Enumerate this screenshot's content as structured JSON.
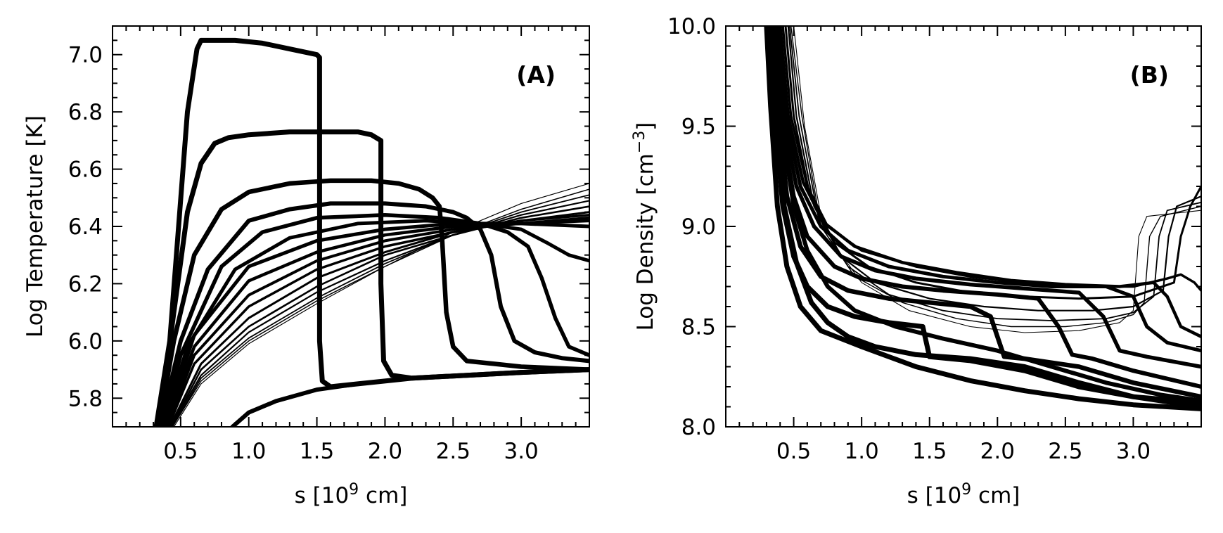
{
  "chart_data": [
    {
      "type": "line",
      "panel_label": "(A)",
      "xlabel_main": "s [10",
      "xlabel_sup": "9",
      "xlabel_tail": " cm]",
      "ylabel": "Log Temperature [K]",
      "xlim": [
        0.0,
        3.5
      ],
      "ylim": [
        5.7,
        7.1
      ],
      "xticks": [
        "0.5",
        "1.0",
        "1.5",
        "2.0",
        "2.5",
        "3.0"
      ],
      "xtick_values": [
        0.5,
        1.0,
        1.5,
        2.0,
        2.5,
        3.0
      ],
      "yticks": [
        "5.8",
        "6.0",
        "6.2",
        "6.4",
        "6.6",
        "6.8",
        "7.0"
      ],
      "ytick_values": [
        5.8,
        6.0,
        6.2,
        6.4,
        6.6,
        6.8,
        7.0
      ],
      "series": [
        {
          "width": 7,
          "x": [
            0.32,
            0.42,
            0.55,
            0.62,
            0.65,
            0.7,
            0.9,
            1.1,
            1.3,
            1.5,
            1.52,
            1.52,
            1.54,
            1.6,
            1.8,
            2.2,
            2.6,
            3.0,
            3.5
          ],
          "y": [
            5.7,
            6.0,
            6.8,
            7.02,
            7.05,
            7.05,
            7.05,
            7.04,
            7.02,
            7.0,
            6.99,
            6.0,
            5.86,
            5.84,
            5.85,
            5.87,
            5.88,
            5.89,
            5.9
          ]
        },
        {
          "width": 7,
          "x": [
            0.34,
            0.45,
            0.55,
            0.65,
            0.75,
            0.85,
            1.0,
            1.3,
            1.6,
            1.8,
            1.9,
            1.97,
            1.97,
            1.99,
            2.05,
            2.2,
            2.6,
            3.0,
            3.5
          ],
          "y": [
            5.7,
            6.1,
            6.45,
            6.62,
            6.69,
            6.71,
            6.72,
            6.73,
            6.73,
            6.73,
            6.72,
            6.7,
            6.2,
            5.93,
            5.88,
            5.87,
            5.88,
            5.89,
            5.9
          ]
        },
        {
          "width": 6.5,
          "x": [
            0.34,
            0.45,
            0.6,
            0.8,
            1.0,
            1.3,
            1.6,
            1.9,
            2.1,
            2.25,
            2.35,
            2.4,
            2.42,
            2.45,
            2.5,
            2.6,
            2.8,
            3.0,
            3.5
          ],
          "y": [
            5.7,
            6.0,
            6.3,
            6.46,
            6.52,
            6.55,
            6.56,
            6.56,
            6.55,
            6.53,
            6.5,
            6.47,
            6.35,
            6.1,
            5.98,
            5.93,
            5.92,
            5.91,
            5.9
          ]
        },
        {
          "width": 6,
          "x": [
            0.35,
            0.5,
            0.7,
            1.0,
            1.3,
            1.6,
            2.0,
            2.3,
            2.5,
            2.6,
            2.7,
            2.78,
            2.85,
            2.95,
            3.1,
            3.3,
            3.5
          ],
          "y": [
            5.7,
            6.0,
            6.25,
            6.42,
            6.46,
            6.48,
            6.48,
            6.47,
            6.45,
            6.43,
            6.39,
            6.3,
            6.12,
            6.0,
            5.96,
            5.94,
            5.93
          ]
        },
        {
          "width": 5.5,
          "x": [
            0.36,
            0.5,
            0.8,
            1.1,
            1.5,
            2.0,
            2.4,
            2.7,
            2.9,
            3.05,
            3.15,
            3.25,
            3.35,
            3.5
          ],
          "y": [
            5.7,
            5.95,
            6.26,
            6.38,
            6.43,
            6.44,
            6.43,
            6.41,
            6.38,
            6.33,
            6.22,
            6.08,
            5.98,
            5.95
          ]
        },
        {
          "width": 5,
          "x": [
            0.37,
            0.55,
            0.9,
            1.3,
            1.8,
            2.3,
            2.7,
            3.0,
            3.2,
            3.35,
            3.5
          ],
          "y": [
            5.7,
            5.98,
            6.25,
            6.36,
            6.41,
            6.42,
            6.41,
            6.39,
            6.34,
            6.3,
            6.28
          ]
        },
        {
          "width": 5,
          "x": [
            0.38,
            0.6,
            1.0,
            1.5,
            2.0,
            2.5,
            3.0,
            3.5
          ],
          "y": [
            5.7,
            6.02,
            6.26,
            6.35,
            6.39,
            6.41,
            6.41,
            6.4
          ]
        },
        {
          "width": 4.5,
          "x": [
            0.39,
            0.6,
            1.0,
            1.5,
            2.0,
            2.5,
            3.0,
            3.5
          ],
          "y": [
            5.7,
            5.98,
            6.21,
            6.31,
            6.37,
            6.4,
            6.41,
            6.42
          ]
        },
        {
          "width": 4,
          "x": [
            0.4,
            0.6,
            1.0,
            1.5,
            2.0,
            2.5,
            3.0,
            3.5
          ],
          "y": [
            5.7,
            5.95,
            6.16,
            6.28,
            6.35,
            6.39,
            6.41,
            6.43
          ]
        },
        {
          "width": 3.5,
          "x": [
            0.41,
            0.6,
            1.0,
            1.5,
            2.0,
            2.5,
            3.0,
            3.5
          ],
          "y": [
            5.7,
            5.92,
            6.12,
            6.25,
            6.33,
            6.38,
            6.42,
            6.44
          ]
        },
        {
          "width": 3,
          "x": [
            0.42,
            0.65,
            1.0,
            1.5,
            2.0,
            2.5,
            3.0,
            3.5
          ],
          "y": [
            5.7,
            5.92,
            6.08,
            6.22,
            6.31,
            6.38,
            6.42,
            6.45
          ]
        },
        {
          "width": 2.6,
          "x": [
            0.43,
            0.65,
            1.0,
            1.5,
            2.0,
            2.5,
            3.0,
            3.5
          ],
          "y": [
            5.7,
            5.9,
            6.05,
            6.19,
            6.3,
            6.37,
            6.43,
            6.47
          ]
        },
        {
          "width": 2.2,
          "x": [
            0.43,
            0.65,
            1.0,
            1.5,
            2.0,
            2.5,
            3.0,
            3.5
          ],
          "y": [
            5.7,
            5.88,
            6.03,
            6.17,
            6.28,
            6.37,
            6.44,
            6.49
          ]
        },
        {
          "width": 1.8,
          "x": [
            0.44,
            0.65,
            1.0,
            1.5,
            2.0,
            2.5,
            3.0,
            3.5
          ],
          "y": [
            5.7,
            5.87,
            6.01,
            6.15,
            6.27,
            6.37,
            6.45,
            6.51
          ]
        },
        {
          "width": 1.5,
          "x": [
            0.44,
            0.65,
            1.0,
            1.5,
            2.0,
            2.5,
            3.0,
            3.5
          ],
          "y": [
            5.7,
            5.86,
            6.0,
            6.14,
            6.26,
            6.37,
            6.46,
            6.53
          ]
        },
        {
          "width": 1.2,
          "x": [
            0.45,
            0.65,
            1.0,
            1.5,
            2.0,
            2.5,
            3.0,
            3.5
          ],
          "y": [
            5.7,
            5.85,
            5.99,
            6.13,
            6.26,
            6.38,
            6.48,
            6.55
          ]
        },
        {
          "width": 6,
          "x": [
            0.88,
            1.0,
            1.2,
            1.5,
            1.8,
            2.2,
            2.6,
            3.0,
            3.5
          ],
          "y": [
            5.7,
            5.75,
            5.79,
            5.83,
            5.85,
            5.87,
            5.88,
            5.89,
            5.9
          ]
        }
      ]
    },
    {
      "type": "line",
      "panel_label": "(B)",
      "xlabel_main": "s [10",
      "xlabel_sup": "9",
      "xlabel_tail": " cm]",
      "ylabel_main": "Log Density [cm",
      "ylabel_sup": "−3",
      "ylabel_tail": "]",
      "xlim": [
        0.0,
        3.5
      ],
      "ylim": [
        8.0,
        10.0
      ],
      "xticks": [
        "0.5",
        "1.0",
        "1.5",
        "2.0",
        "2.5",
        "3.0"
      ],
      "xtick_values": [
        0.5,
        1.0,
        1.5,
        2.0,
        2.5,
        3.0
      ],
      "yticks": [
        "8.0",
        "8.5",
        "9.0",
        "9.5",
        "10.0"
      ],
      "ytick_values": [
        8.0,
        8.5,
        9.0,
        9.5,
        10.0
      ],
      "series": [
        {
          "width": 7,
          "x": [
            0.3,
            0.33,
            0.38,
            0.45,
            0.55,
            0.7,
            1.0,
            1.4,
            1.8,
            2.2,
            2.6,
            3.0,
            3.5
          ],
          "y": [
            10.0,
            9.6,
            9.1,
            8.8,
            8.6,
            8.48,
            8.4,
            8.3,
            8.23,
            8.18,
            8.14,
            8.11,
            8.09
          ]
        },
        {
          "width": 7,
          "x": [
            0.32,
            0.36,
            0.42,
            0.5,
            0.6,
            0.75,
            0.95,
            1.2,
            1.45,
            1.5,
            1.8,
            2.2,
            2.6,
            3.0,
            3.5
          ],
          "y": [
            10.0,
            9.55,
            9.1,
            8.85,
            8.7,
            8.6,
            8.55,
            8.52,
            8.5,
            8.35,
            8.33,
            8.28,
            8.2,
            8.15,
            8.12
          ]
        },
        {
          "width": 6.5,
          "x": [
            0.34,
            0.38,
            0.45,
            0.55,
            0.7,
            0.9,
            1.2,
            1.5,
            1.8,
            1.95,
            2.05,
            2.2,
            2.6,
            3.0,
            3.5
          ],
          "y": [
            10.0,
            9.6,
            9.15,
            8.9,
            8.75,
            8.68,
            8.64,
            8.62,
            8.6,
            8.55,
            8.35,
            8.34,
            8.3,
            8.22,
            8.15
          ]
        },
        {
          "width": 6,
          "x": [
            0.35,
            0.4,
            0.5,
            0.6,
            0.8,
            1.0,
            1.3,
            1.6,
            2.0,
            2.3,
            2.45,
            2.55,
            2.7,
            3.0,
            3.5
          ],
          "y": [
            10.0,
            9.55,
            9.15,
            8.95,
            8.8,
            8.74,
            8.7,
            8.68,
            8.66,
            8.64,
            8.5,
            8.36,
            8.34,
            8.28,
            8.2
          ]
        },
        {
          "width": 5.5,
          "x": [
            0.37,
            0.42,
            0.52,
            0.65,
            0.85,
            1.1,
            1.4,
            1.8,
            2.2,
            2.6,
            2.78,
            2.9,
            3.1,
            3.5
          ],
          "y": [
            10.0,
            9.55,
            9.2,
            9.0,
            8.85,
            8.78,
            8.74,
            8.71,
            8.69,
            8.67,
            8.55,
            8.38,
            8.35,
            8.3
          ]
        },
        {
          "width": 5,
          "x": [
            0.38,
            0.44,
            0.55,
            0.7,
            0.9,
            1.2,
            1.6,
            2.0,
            2.4,
            2.8,
            3.0,
            3.1,
            3.25,
            3.5
          ],
          "y": [
            10.0,
            9.55,
            9.2,
            9.0,
            8.88,
            8.8,
            8.75,
            8.72,
            8.7,
            8.7,
            8.65,
            8.5,
            8.42,
            8.38
          ]
        },
        {
          "width": 4.5,
          "x": [
            0.4,
            0.46,
            0.57,
            0.72,
            0.95,
            1.3,
            1.7,
            2.1,
            2.5,
            2.9,
            3.15,
            3.25,
            3.35,
            3.5
          ],
          "y": [
            10.0,
            9.55,
            9.22,
            9.02,
            8.9,
            8.82,
            8.77,
            8.73,
            8.71,
            8.7,
            8.72,
            8.65,
            8.5,
            8.45
          ]
        },
        {
          "width": 3.5,
          "x": [
            0.42,
            0.48,
            0.6,
            0.75,
            1.0,
            1.4,
            1.8,
            2.2,
            2.6,
            3.0,
            3.25,
            3.35,
            3.45,
            3.5
          ],
          "y": [
            10.0,
            9.55,
            9.2,
            9.0,
            8.88,
            8.8,
            8.75,
            8.72,
            8.7,
            8.7,
            8.74,
            8.76,
            8.72,
            8.68
          ]
        },
        {
          "width": 3,
          "x": [
            0.44,
            0.5,
            0.62,
            0.8,
            1.05,
            1.4,
            1.8,
            2.2,
            2.6,
            3.0,
            3.3,
            3.35,
            3.42,
            3.5
          ],
          "y": [
            10.0,
            9.55,
            9.15,
            8.92,
            8.8,
            8.72,
            8.67,
            8.65,
            8.64,
            8.65,
            8.72,
            8.95,
            9.1,
            9.2
          ]
        },
        {
          "width": 2.2,
          "x": [
            0.46,
            0.52,
            0.65,
            0.85,
            1.1,
            1.5,
            1.9,
            2.3,
            2.7,
            3.0,
            3.22,
            3.26,
            3.32,
            3.5
          ],
          "y": [
            10.0,
            9.55,
            9.1,
            8.85,
            8.72,
            8.64,
            8.6,
            8.58,
            8.58,
            8.6,
            8.68,
            8.95,
            9.1,
            9.15
          ]
        },
        {
          "width": 1.8,
          "x": [
            0.47,
            0.54,
            0.68,
            0.9,
            1.2,
            1.6,
            2.0,
            2.4,
            2.8,
            3.0,
            3.15,
            3.19,
            3.25,
            3.5
          ],
          "y": [
            10.0,
            9.55,
            9.05,
            8.8,
            8.66,
            8.58,
            8.54,
            8.53,
            8.54,
            8.57,
            8.65,
            8.95,
            9.08,
            9.12
          ]
        },
        {
          "width": 1.4,
          "x": [
            0.48,
            0.56,
            0.7,
            0.95,
            1.3,
            1.7,
            2.1,
            2.5,
            2.8,
            3.0,
            3.08,
            3.12,
            3.2,
            3.5
          ],
          "y": [
            10.0,
            9.55,
            9.0,
            8.75,
            8.62,
            8.54,
            8.5,
            8.5,
            8.52,
            8.56,
            8.62,
            8.95,
            9.05,
            9.1
          ]
        },
        {
          "width": 1.1,
          "x": [
            0.5,
            0.58,
            0.72,
            1.0,
            1.35,
            1.8,
            2.2,
            2.6,
            2.9,
            3.0,
            3.04,
            3.1,
            3.5
          ],
          "y": [
            10.0,
            9.5,
            8.98,
            8.72,
            8.58,
            8.5,
            8.47,
            8.48,
            8.52,
            8.58,
            8.95,
            9.05,
            9.08
          ]
        },
        {
          "width": 7,
          "x": [
            0.33,
            0.37,
            0.43,
            0.52,
            0.63,
            0.75,
            0.9,
            1.1,
            1.4,
            1.8,
            2.2,
            2.6,
            3.0,
            3.5
          ],
          "y": [
            10.0,
            9.5,
            9.1,
            8.82,
            8.62,
            8.52,
            8.45,
            8.4,
            8.36,
            8.34,
            8.3,
            8.22,
            8.15,
            8.1
          ]
        },
        {
          "width": 6,
          "x": [
            0.36,
            0.41,
            0.5,
            0.6,
            0.75,
            0.95,
            1.25,
            1.6,
            2.0,
            2.4,
            2.8,
            3.2,
            3.5
          ],
          "y": [
            10.0,
            9.5,
            9.1,
            8.88,
            8.7,
            8.58,
            8.5,
            8.44,
            8.38,
            8.3,
            8.22,
            8.16,
            8.13
          ]
        }
      ]
    }
  ]
}
